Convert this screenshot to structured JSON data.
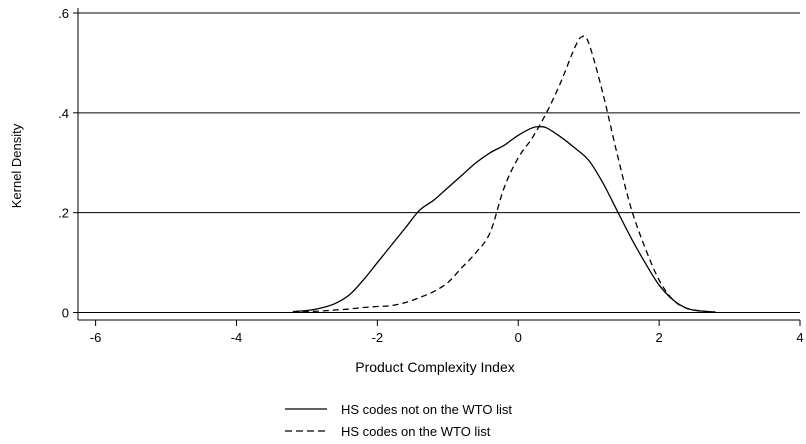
{
  "chart_data": {
    "type": "line",
    "xlabel": "Product Complexity Index",
    "ylabel": "Kernel Density",
    "xlim": [
      -6.25,
      4
    ],
    "ylim": [
      -0.015,
      0.61
    ],
    "x_ticks": [
      {
        "value": -6,
        "label": "-6"
      },
      {
        "value": -4,
        "label": "-4"
      },
      {
        "value": -2,
        "label": "-2"
      },
      {
        "value": 0,
        "label": "0"
      },
      {
        "value": 2,
        "label": "2"
      },
      {
        "value": 4,
        "label": "4"
      }
    ],
    "y_ticks": [
      {
        "value": 0,
        "label": "0"
      },
      {
        "value": 0.2,
        "label": ".2"
      },
      {
        "value": 0.4,
        "label": ".4"
      },
      {
        "value": 0.6,
        "label": ".6"
      }
    ],
    "grid": {
      "horizontal": true,
      "vertical": false
    },
    "legend_position": "bottom-center",
    "series": [
      {
        "name": "HS codes not on the WTO list",
        "line_style": "solid",
        "color": "#000000",
        "x": [
          -3.2,
          -3.0,
          -2.8,
          -2.6,
          -2.4,
          -2.2,
          -2.0,
          -1.8,
          -1.6,
          -1.4,
          -1.2,
          -1.0,
          -0.8,
          -0.6,
          -0.4,
          -0.2,
          0.0,
          0.2,
          0.3,
          0.4,
          0.6,
          0.8,
          1.0,
          1.2,
          1.4,
          1.6,
          1.8,
          2.0,
          2.2,
          2.4,
          2.6,
          2.8
        ],
        "y": [
          0.002,
          0.004,
          0.009,
          0.018,
          0.035,
          0.065,
          0.1,
          0.135,
          0.17,
          0.205,
          0.225,
          0.25,
          0.275,
          0.3,
          0.32,
          0.335,
          0.355,
          0.37,
          0.372,
          0.37,
          0.352,
          0.33,
          0.305,
          0.26,
          0.205,
          0.15,
          0.1,
          0.055,
          0.025,
          0.008,
          0.003,
          0.001
        ]
      },
      {
        "name": "HS codes on the WTO list",
        "line_style": "dashed",
        "color": "#000000",
        "x": [
          -3.2,
          -3.0,
          -2.8,
          -2.6,
          -2.4,
          -2.2,
          -2.0,
          -1.8,
          -1.6,
          -1.4,
          -1.2,
          -1.0,
          -0.8,
          -0.6,
          -0.4,
          -0.2,
          0.0,
          0.2,
          0.4,
          0.6,
          0.8,
          0.9,
          1.0,
          1.2,
          1.4,
          1.6,
          1.8,
          2.0,
          2.2,
          2.4,
          2.6,
          2.8
        ],
        "y": [
          0.001,
          0.002,
          0.003,
          0.005,
          0.007,
          0.01,
          0.012,
          0.014,
          0.02,
          0.03,
          0.042,
          0.06,
          0.09,
          0.12,
          0.16,
          0.25,
          0.31,
          0.35,
          0.4,
          0.46,
          0.53,
          0.552,
          0.54,
          0.44,
          0.32,
          0.21,
          0.13,
          0.065,
          0.025,
          0.008,
          0.003,
          0.001
        ]
      }
    ]
  }
}
